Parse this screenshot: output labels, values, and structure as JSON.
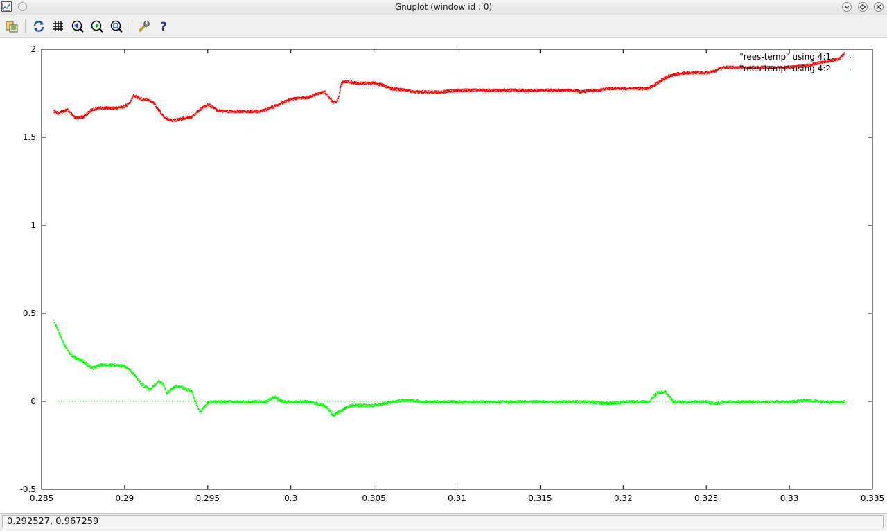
{
  "window": {
    "title": "Gnuplot (window id : 0)",
    "icons": [
      "app-icon",
      "window-menu-icon",
      "minimize-icon",
      "maximize-icon",
      "close-icon"
    ]
  },
  "toolbar": {
    "buttons": [
      {
        "name": "export-button",
        "icon": "export-icon"
      },
      {
        "name": "replot-button",
        "icon": "refresh-icon"
      },
      {
        "name": "grid-button",
        "icon": "grid-icon"
      },
      {
        "name": "zoom-back-button",
        "icon": "zoom-back-icon"
      },
      {
        "name": "zoom-forward-button",
        "icon": "zoom-forward-icon"
      },
      {
        "name": "autoscale-button",
        "icon": "zoom-fit-icon"
      },
      {
        "name": "settings-button",
        "icon": "wrench-icon"
      },
      {
        "name": "help-button",
        "icon": "help-icon",
        "label": "?"
      }
    ]
  },
  "status": {
    "coordinates": "0.292527,  0.967259"
  },
  "chart_data": {
    "type": "scatter",
    "title": "",
    "xlabel": "",
    "ylabel": "",
    "xlim": [
      0.285,
      0.335
    ],
    "ylim": [
      -0.5,
      2
    ],
    "x_ticks": [
      "0.285",
      "0.29",
      "0.295",
      "0.3",
      "0.305",
      "0.31",
      "0.315",
      "0.32",
      "0.325",
      "0.33",
      "0.335"
    ],
    "y_ticks": [
      "-0.5",
      "0",
      "0.5",
      "1",
      "1.5",
      "2"
    ],
    "grid": false,
    "legend_position": "top-right",
    "series": [
      {
        "name": "\"rees-temp\" using 4:1",
        "color": "#ff0000",
        "x": [
          0.2857,
          0.286,
          0.2865,
          0.287,
          0.2875,
          0.288,
          0.2885,
          0.289,
          0.2895,
          0.29,
          0.2903,
          0.2905,
          0.291,
          0.2913,
          0.2917,
          0.292,
          0.2923,
          0.2927,
          0.293,
          0.2935,
          0.294,
          0.2945,
          0.295,
          0.2955,
          0.296,
          0.297,
          0.298,
          0.2985,
          0.299,
          0.3,
          0.301,
          0.3015,
          0.302,
          0.3025,
          0.3028,
          0.303,
          0.3033,
          0.304,
          0.305,
          0.3055,
          0.306,
          0.307,
          0.3075,
          0.308,
          0.309,
          0.31,
          0.312,
          0.314,
          0.316,
          0.317,
          0.3175,
          0.318,
          0.3185,
          0.319,
          0.32,
          0.321,
          0.3215,
          0.322,
          0.3225,
          0.323,
          0.324,
          0.325,
          0.3255,
          0.326,
          0.327,
          0.328,
          0.329,
          0.33,
          0.331,
          0.332,
          0.333,
          0.3333
        ],
        "y": [
          1.65,
          1.64,
          1.66,
          1.61,
          1.62,
          1.66,
          1.67,
          1.67,
          1.67,
          1.68,
          1.7,
          1.74,
          1.72,
          1.72,
          1.7,
          1.66,
          1.62,
          1.6,
          1.6,
          1.61,
          1.62,
          1.66,
          1.69,
          1.66,
          1.65,
          1.65,
          1.65,
          1.66,
          1.68,
          1.72,
          1.73,
          1.75,
          1.76,
          1.7,
          1.71,
          1.81,
          1.82,
          1.81,
          1.81,
          1.8,
          1.78,
          1.77,
          1.76,
          1.76,
          1.76,
          1.77,
          1.77,
          1.77,
          1.77,
          1.77,
          1.76,
          1.77,
          1.77,
          1.78,
          1.78,
          1.78,
          1.78,
          1.81,
          1.84,
          1.86,
          1.87,
          1.87,
          1.88,
          1.9,
          1.9,
          1.9,
          1.9,
          1.9,
          1.91,
          1.93,
          1.95,
          1.98
        ]
      },
      {
        "name": "\"rees-temp\" using 4:2",
        "color": "#00ff00",
        "x": [
          0.2857,
          0.286,
          0.2863,
          0.2867,
          0.287,
          0.2875,
          0.288,
          0.2885,
          0.289,
          0.2895,
          0.29,
          0.2905,
          0.291,
          0.2915,
          0.292,
          0.2923,
          0.2925,
          0.293,
          0.2935,
          0.294,
          0.2945,
          0.295,
          0.296,
          0.297,
          0.298,
          0.2985,
          0.299,
          0.2995,
          0.3,
          0.301,
          0.3015,
          0.302,
          0.3023,
          0.3025,
          0.303,
          0.3035,
          0.304,
          0.305,
          0.306,
          0.307,
          0.308,
          0.31,
          0.315,
          0.3175,
          0.318,
          0.319,
          0.32,
          0.321,
          0.3215,
          0.322,
          0.3225,
          0.323,
          0.325,
          0.3255,
          0.326,
          0.328,
          0.33,
          0.331,
          0.332,
          0.3333
        ],
        "y": [
          0.46,
          0.4,
          0.33,
          0.27,
          0.25,
          0.23,
          0.19,
          0.21,
          0.21,
          0.21,
          0.2,
          0.16,
          0.1,
          0.07,
          0.12,
          0.1,
          0.05,
          0.09,
          0.08,
          0.06,
          -0.06,
          0.0,
          0.0,
          0.0,
          0.0,
          0.0,
          0.03,
          0.0,
          0.0,
          0.0,
          -0.01,
          -0.02,
          -0.05,
          -0.08,
          -0.05,
          -0.02,
          -0.02,
          -0.02,
          0.0,
          0.01,
          0.0,
          0.0,
          0.0,
          0.0,
          0.0,
          -0.01,
          0.0,
          0.0,
          0.0,
          0.05,
          0.06,
          0.0,
          0.0,
          -0.01,
          0.0,
          0.0,
          0.0,
          0.01,
          0.0,
          0.0
        ]
      },
      {
        "name": "",
        "color": "#00ff00",
        "x": [
          0.286,
          0.287,
          0.288,
          0.289,
          0.29,
          0.2905,
          0.292,
          0.293,
          0.294,
          0.298,
          0.3,
          0.302,
          0.303,
          0.304,
          0.305,
          0.308,
          0.312,
          0.317,
          0.323
        ],
        "y": [
          0.0,
          0.0,
          0.0,
          0.0,
          0.0,
          0.0,
          0.0,
          0.0,
          0.0,
          0.0,
          0.0,
          0.0,
          0.0,
          0.0,
          0.0,
          0.0,
          0.0,
          0.0,
          0.0
        ]
      }
    ]
  }
}
